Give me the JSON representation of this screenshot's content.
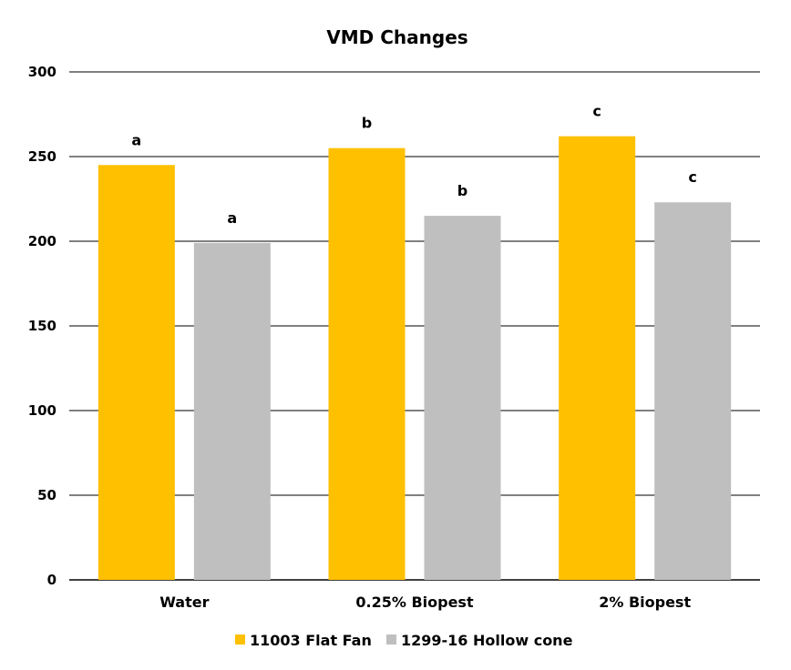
{
  "chart_data": {
    "type": "bar",
    "title": "VMD Changes",
    "categories": [
      "Water",
      "0.25% Biopest",
      "2% Biopest"
    ],
    "ylim": [
      0,
      300
    ],
    "yticks": [
      0,
      50,
      100,
      150,
      200,
      250,
      300
    ],
    "grid": true,
    "legend_position": "bottom",
    "series": [
      {
        "name": "11003 Flat Fan",
        "color": "#FFC000",
        "values": [
          245,
          255,
          262
        ],
        "labels": [
          "a",
          "b",
          "c"
        ]
      },
      {
        "name": "1299-16 Hollow cone",
        "color": "#BFBFBF",
        "values": [
          199,
          215,
          223
        ],
        "labels": [
          "a",
          "b",
          "c"
        ]
      }
    ]
  }
}
